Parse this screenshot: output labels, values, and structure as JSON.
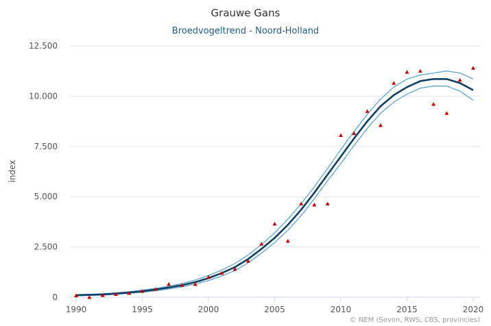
{
  "chart_data": {
    "type": "line",
    "title": "Grauwe Gans",
    "subtitle": "Broedvogeltrend - Noord-Holland",
    "ylabel": "index",
    "xlabel": "",
    "xlim": [
      1990,
      2021
    ],
    "ylim": [
      0,
      12500
    ],
    "xticks": [
      1990,
      1995,
      2000,
      2005,
      2010,
      2015,
      2020
    ],
    "yticks": [
      0,
      2500,
      5000,
      7500,
      10000,
      12500
    ],
    "ytick_labels": [
      "0",
      "2.500",
      "5.000",
      "7.500",
      "10.000",
      "12.500"
    ],
    "grid": true,
    "colors": {
      "trend": "#0e3d66",
      "band": "#5aa7d1",
      "points": "#cc0000",
      "grid": "#e6e6e6"
    },
    "x": [
      1990,
      1991,
      1992,
      1993,
      1994,
      1995,
      1996,
      1997,
      1998,
      1999,
      2000,
      2001,
      2002,
      2003,
      2004,
      2005,
      2006,
      2007,
      2008,
      2009,
      2010,
      2011,
      2012,
      2013,
      2014,
      2015,
      2016,
      2017,
      2018,
      2019,
      2020
    ],
    "series": [
      {
        "role": "trend",
        "style": "line",
        "values": [
          100,
          120,
          140,
          180,
          230,
          300,
          380,
          480,
          600,
          750,
          950,
          1200,
          1500,
          1900,
          2400,
          2950,
          3600,
          4350,
          5200,
          6100,
          7000,
          7900,
          8750,
          9500,
          10050,
          10450,
          10750,
          10850,
          10850,
          10650,
          10300
        ]
      },
      {
        "role": "upper",
        "style": "line",
        "values": [
          130,
          150,
          175,
          215,
          275,
          350,
          440,
          550,
          680,
          850,
          1080,
          1350,
          1680,
          2100,
          2620,
          3200,
          3880,
          4650,
          5500,
          6400,
          7350,
          8250,
          9100,
          9850,
          10450,
          10850,
          11050,
          11150,
          11250,
          11150,
          10850
        ]
      },
      {
        "role": "lower",
        "style": "line",
        "values": [
          70,
          90,
          110,
          145,
          190,
          250,
          320,
          410,
          520,
          650,
          830,
          1060,
          1330,
          1710,
          2190,
          2720,
          3330,
          4060,
          4900,
          5800,
          6650,
          7550,
          8400,
          9150,
          9700,
          10100,
          10400,
          10500,
          10500,
          10250,
          9800
        ]
      },
      {
        "role": "observed",
        "style": "markers",
        "values": [
          80,
          0,
          100,
          150,
          200,
          300,
          400,
          650,
          600,
          650,
          1000,
          1200,
          1400,
          1800,
          2650,
          3650,
          2800,
          4650,
          4600,
          4650,
          8050,
          8150,
          9250,
          8550,
          10650,
          11200,
          11250,
          9600,
          9150,
          10800,
          11400
        ]
      }
    ]
  },
  "credits": "© NEM (Sovon, RWS, CBS, provincies)"
}
